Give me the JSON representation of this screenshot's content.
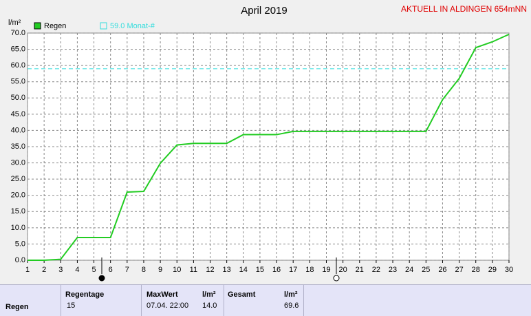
{
  "chart_data": {
    "type": "line",
    "title": "April 2019",
    "subtitle": "AKTUELL IN ALDINGEN 654mNN",
    "y_label": "l/m²",
    "x": [
      1,
      2,
      3,
      4,
      5,
      6,
      7,
      8,
      9,
      10,
      11,
      12,
      13,
      14,
      15,
      16,
      17,
      18,
      19,
      20,
      21,
      22,
      23,
      24,
      25,
      26,
      27,
      28,
      29,
      30
    ],
    "series": [
      {
        "name": "Regen",
        "color": "#22cc22",
        "values": [
          0,
          0,
          0.3,
          7.0,
          7.0,
          7.0,
          21.0,
          21.2,
          29.9,
          35.5,
          36.0,
          36.0,
          36.0,
          38.7,
          38.7,
          38.7,
          39.7,
          39.7,
          39.7,
          39.7,
          39.7,
          39.7,
          39.7,
          39.7,
          39.7,
          49.5,
          56.0,
          65.5,
          67.3,
          69.6
        ]
      }
    ],
    "reference_line": {
      "name": "59.0 Monat-#",
      "value": 59,
      "color": "#33dddd"
    },
    "xlim": [
      1,
      30
    ],
    "xticks": [
      1,
      2,
      3,
      4,
      5,
      6,
      7,
      8,
      9,
      10,
      11,
      12,
      13,
      14,
      15,
      16,
      17,
      18,
      19,
      20,
      21,
      22,
      23,
      24,
      25,
      26,
      27,
      28,
      29,
      30
    ],
    "ylim": [
      0,
      70
    ],
    "yticks": [
      {
        "value": 0,
        "label": "0.0"
      },
      {
        "value": 5,
        "label": "5.0"
      },
      {
        "value": 10,
        "label": "10.0"
      },
      {
        "value": 15,
        "label": "15.0"
      },
      {
        "value": 20,
        "label": "20.0"
      },
      {
        "value": 25,
        "label": "25.0"
      },
      {
        "value": 30,
        "label": "30.0"
      },
      {
        "value": 35,
        "label": "35.0"
      },
      {
        "value": 40,
        "label": "40.0"
      },
      {
        "value": 45,
        "label": "45.0"
      },
      {
        "value": 50,
        "label": "50.0"
      },
      {
        "value": 55,
        "label": "55.0"
      },
      {
        "value": 60,
        "label": "60.0"
      },
      {
        "value": 65,
        "label": "65.0"
      },
      {
        "value": 70,
        "label": "70.0"
      }
    ],
    "grid": true
  },
  "table": {
    "headers": [
      "Regentage",
      "MaxWert",
      "l/m²",
      "Gesamt",
      "l/m²"
    ],
    "rows": [
      [
        "Regen",
        15,
        "07.04.  22:00",
        "14.0",
        "69.6"
      ]
    ]
  }
}
